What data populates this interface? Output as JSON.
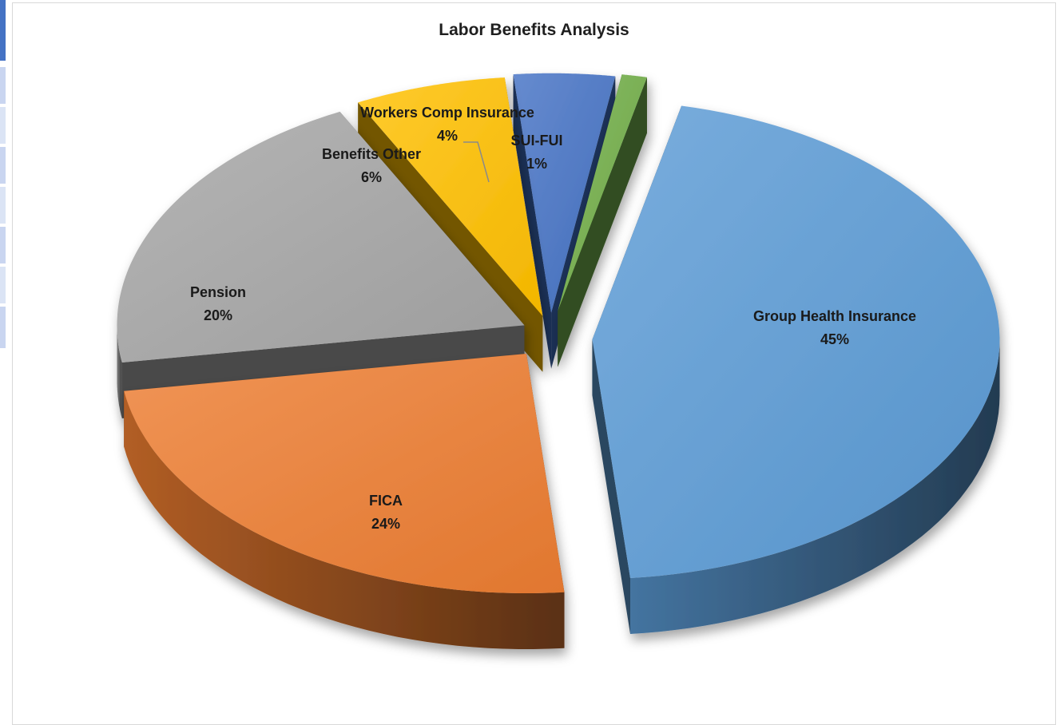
{
  "chart_data": {
    "type": "pie",
    "title": "Labor Benefits Analysis",
    "style": "3d-exploded",
    "slices": [
      {
        "name": "Group Health Insurance",
        "value": 45,
        "label": "45%",
        "color": "#5b9bd5"
      },
      {
        "name": "FICA",
        "value": 24,
        "label": "24%",
        "color": "#ed7d31"
      },
      {
        "name": "Pension",
        "value": 20,
        "label": "20%",
        "color": "#a5a5a5"
      },
      {
        "name": "Benefits Other",
        "value": 6,
        "label": "6%",
        "color": "#ffc000"
      },
      {
        "name": "Workers Comp Insurance",
        "value": 4,
        "label": "4%",
        "color": "#4472c4"
      },
      {
        "name": "SUI-FUI",
        "value": 1,
        "label": "1%",
        "color": "#70ad47"
      }
    ]
  }
}
